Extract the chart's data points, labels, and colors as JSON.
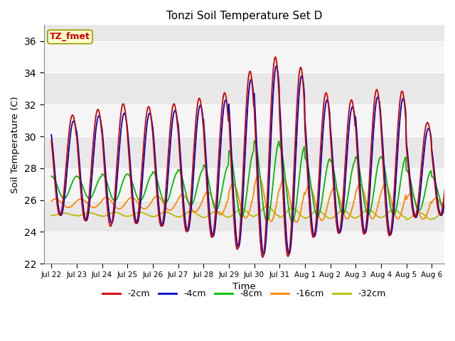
{
  "title": "Tonzi Soil Temperature Set D",
  "xlabel": "Time",
  "ylabel": "Soil Temperature (C)",
  "ylim": [
    22,
    37
  ],
  "yticks": [
    22,
    24,
    26,
    28,
    30,
    32,
    34,
    36
  ],
  "x_tick_labels": [
    "Jul 22",
    "Jul 23",
    "Jul 24",
    "Jul 25",
    "Jul 26",
    "Jul 27",
    "Jul 28",
    "Jul 29",
    "Jul 30",
    "Jul 31",
    "Aug 1",
    "Aug 2",
    "Aug 3",
    "Aug 4",
    "Aug 5",
    "Aug 6"
  ],
  "legend_labels": [
    "-2cm",
    "-4cm",
    "-8cm",
    "-16cm",
    "-32cm"
  ],
  "line_colors": [
    "#cc0000",
    "#0000cc",
    "#00bb00",
    "#ff8800",
    "#bbbb00"
  ],
  "line_widths": [
    1.3,
    1.3,
    1.3,
    1.3,
    1.3
  ],
  "annotation_text": "TZ_fmet",
  "annotation_color": "#cc0000",
  "annotation_bg": "#ffffcc",
  "annotation_border": "#999900",
  "plot_bg_light": "#f5f5f5",
  "plot_bg_dark": "#e8e8e8",
  "n_days": 16,
  "n_pts_per_day": 48,
  "params_2cm": {
    "base_amp": 3.5,
    "base_mean": 28.2,
    "phase_hr": 14,
    "amp_scale": [
      0.9,
      1.0,
      1.1,
      1.05,
      1.1,
      1.2,
      1.3,
      1.6,
      1.8,
      1.7,
      1.3,
      1.2,
      1.3,
      1.3,
      0.85,
      0.75
    ],
    "mean_adj": [
      0,
      0,
      0,
      0,
      0,
      0,
      0,
      0.3,
      0.5,
      0.2,
      0,
      -0.1,
      0.2,
      0.1,
      -0.3,
      -0.5
    ]
  },
  "params_4cm": {
    "base_amp": 3.3,
    "base_mean": 28.0,
    "phase_hr": 15,
    "amp_scale": [
      0.9,
      1.0,
      1.05,
      1.05,
      1.1,
      1.2,
      1.3,
      1.6,
      1.8,
      1.7,
      1.3,
      1.2,
      1.3,
      1.3,
      0.85,
      0.75
    ],
    "mean_adj": [
      0,
      0,
      0,
      0,
      0,
      0,
      0,
      0.3,
      0.5,
      0.2,
      0,
      -0.1,
      0.2,
      0.1,
      -0.3,
      -0.5
    ]
  },
  "params_8cm": {
    "base_amp": 1.4,
    "base_mean": 26.8,
    "phase_hr": 18,
    "amp_scale": [
      0.5,
      0.5,
      0.6,
      0.6,
      0.7,
      0.8,
      1.0,
      1.5,
      1.8,
      1.7,
      1.3,
      1.2,
      1.3,
      1.3,
      0.9,
      0.7
    ],
    "mean_adj": [
      0,
      0,
      0,
      0,
      0,
      0,
      0,
      0.2,
      0.4,
      0.2,
      0,
      0,
      0.1,
      0.1,
      -0.2,
      -0.3
    ]
  },
  "params_16cm": {
    "base_amp": 0.9,
    "base_mean": 25.8,
    "phase_hr": 22,
    "amp_scale": [
      0.3,
      0.3,
      0.4,
      0.4,
      0.5,
      0.6,
      0.8,
      1.2,
      1.6,
      1.5,
      1.2,
      1.1,
      1.2,
      1.2,
      0.9,
      0.7
    ],
    "mean_adj": [
      0,
      0,
      0,
      0,
      0,
      0,
      0,
      0.15,
      0.3,
      0.15,
      0,
      0,
      0.1,
      0.1,
      -0.2,
      -0.3
    ]
  },
  "params_32cm": {
    "base_amp": 0.25,
    "base_mean": 25.1,
    "phase_hr": 30,
    "amp_scale": [
      0.3,
      0.4,
      0.5,
      0.5,
      0.6,
      0.7,
      0.8,
      1.0,
      1.2,
      1.2,
      1.0,
      1.0,
      1.0,
      1.0,
      0.9,
      0.8
    ],
    "mean_adj": [
      0,
      0,
      0,
      0,
      0,
      0,
      0,
      0.1,
      0.2,
      0.1,
      0,
      0,
      0.05,
      0.05,
      -0.1,
      -0.1
    ]
  }
}
